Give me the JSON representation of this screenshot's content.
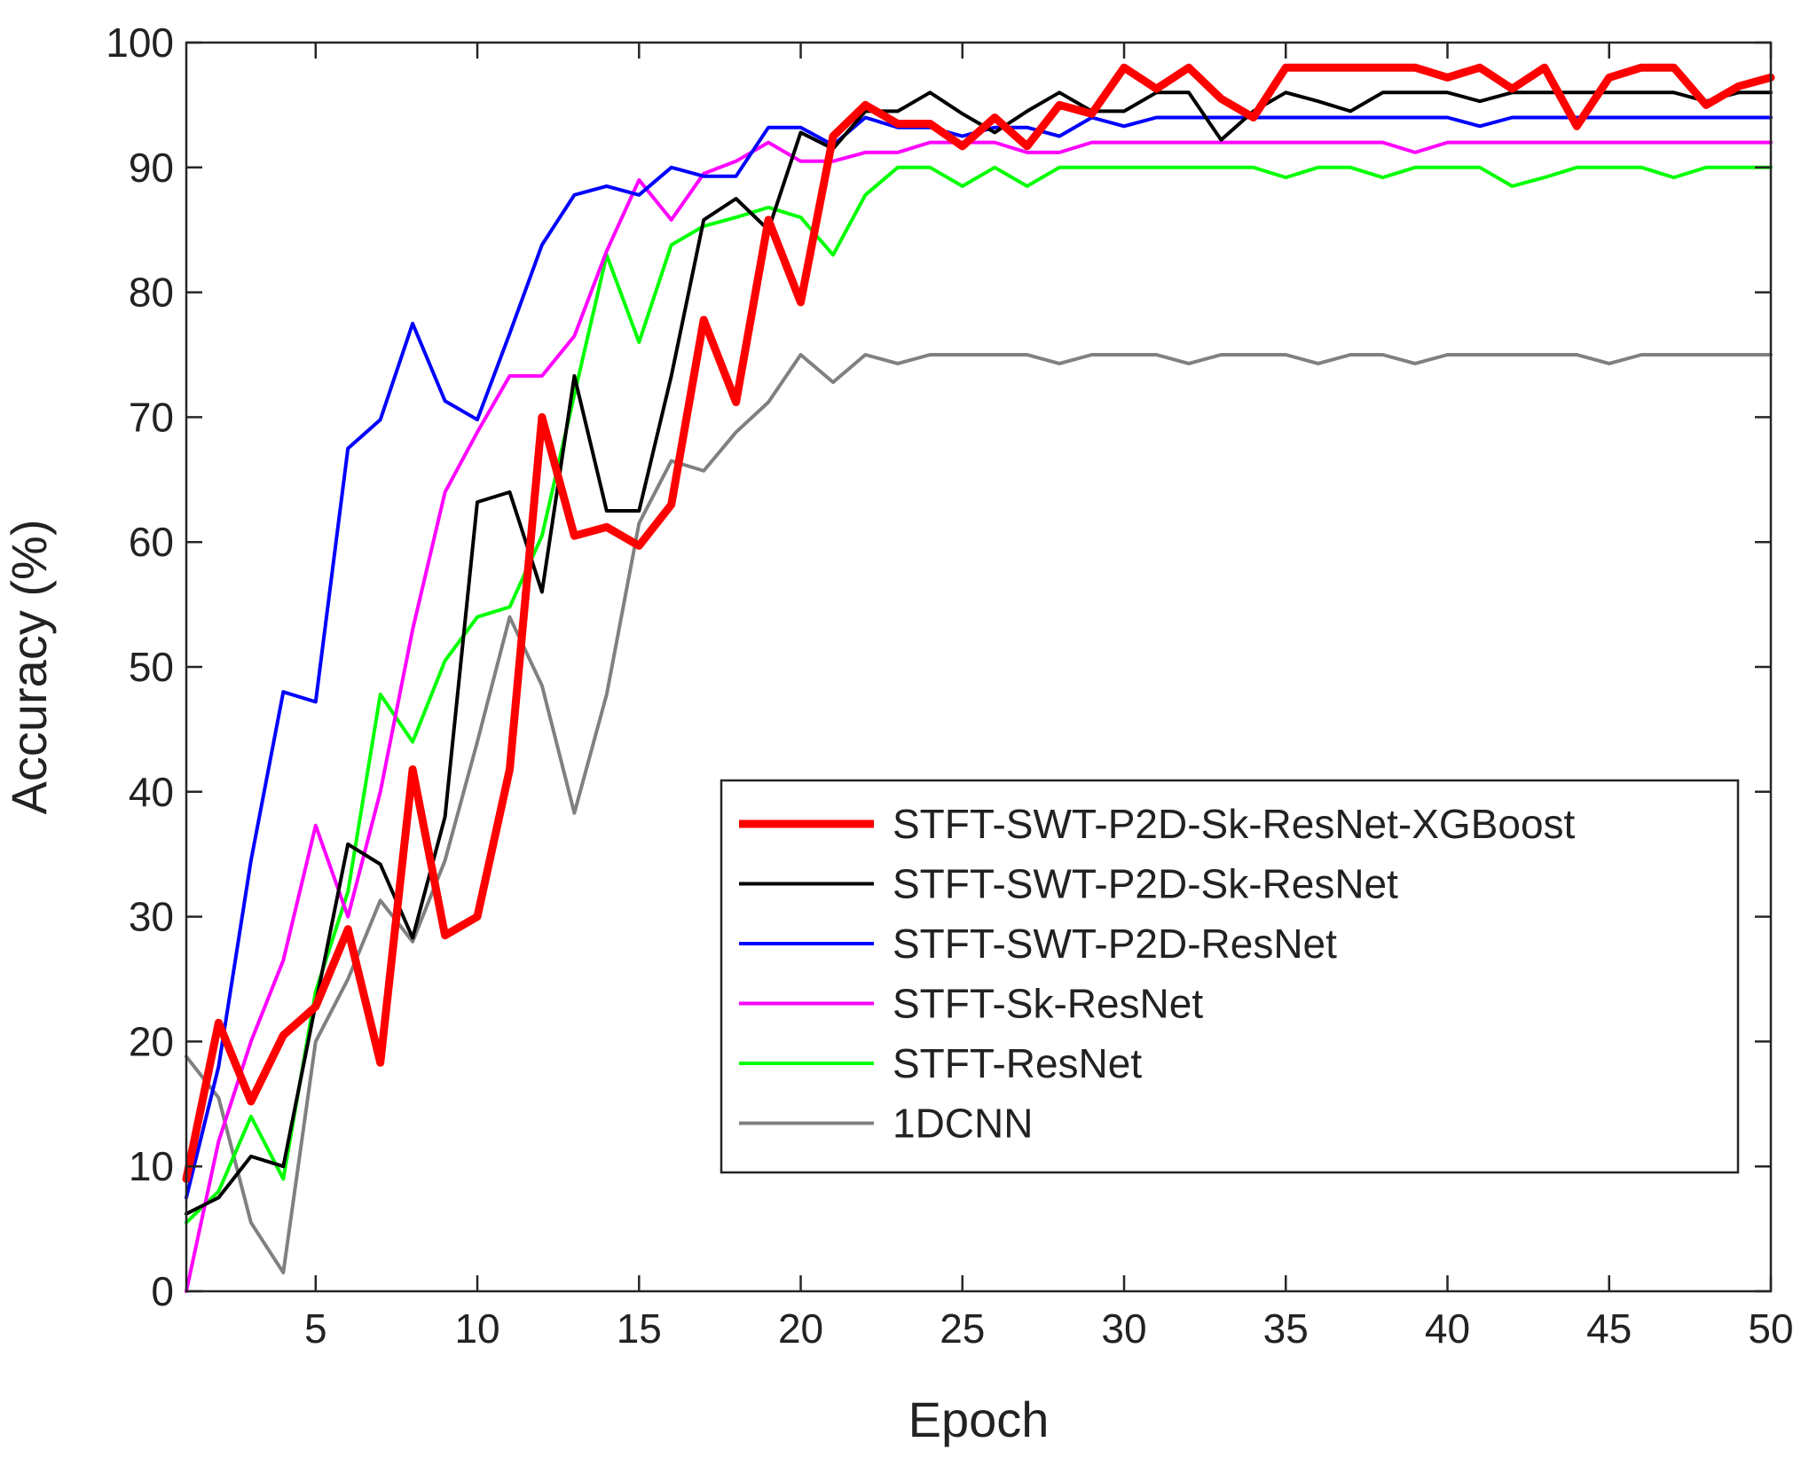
{
  "chart_data": {
    "type": "line",
    "title": "",
    "xlabel": "Epoch",
    "ylabel": "Accuracy (%)",
    "xlim": [
      1,
      50
    ],
    "ylim": [
      0,
      100
    ],
    "xticks": [
      5,
      10,
      15,
      20,
      25,
      30,
      35,
      40,
      45,
      50
    ],
    "yticks": [
      0,
      10,
      20,
      30,
      40,
      50,
      60,
      70,
      80,
      90,
      100
    ],
    "grid": false,
    "legend_position": "lower-right",
    "x": [
      1,
      2,
      3,
      4,
      5,
      6,
      7,
      8,
      9,
      10,
      11,
      12,
      13,
      14,
      15,
      16,
      17,
      18,
      19,
      20,
      21,
      22,
      23,
      24,
      25,
      26,
      27,
      28,
      29,
      30,
      31,
      32,
      33,
      34,
      35,
      36,
      37,
      38,
      39,
      40,
      41,
      42,
      43,
      44,
      45,
      46,
      47,
      48,
      49,
      50
    ],
    "series": [
      {
        "name": "STFT-SWT-P2D-Sk-ResNet-XGBoost",
        "color": "#ff0000",
        "values": [
          9,
          21.5,
          15.2,
          20.5,
          22.8,
          29,
          18.3,
          41.8,
          28.5,
          30,
          41.8,
          70,
          60.5,
          61.2,
          59.7,
          63,
          77.8,
          71.2,
          85.8,
          79.2,
          92.5,
          95,
          93.5,
          93.5,
          91.7,
          94,
          91.7,
          95,
          94.3,
          98,
          96.3,
          98,
          95.5,
          94,
          98,
          98,
          98,
          98,
          98,
          97.2,
          98,
          96.3,
          98,
          93.3,
          97.2,
          98,
          98,
          95,
          96.5,
          97.2
        ]
      },
      {
        "name": "STFT-SWT-P2D-Sk-ResNet",
        "color": "#000000",
        "values": [
          6.2,
          7.5,
          10.8,
          10,
          23,
          35.8,
          34.2,
          28.3,
          38,
          63.2,
          64,
          56,
          73.3,
          62.5,
          62.5,
          73.3,
          85.8,
          87.5,
          85,
          92.8,
          91.5,
          94.5,
          94.5,
          96,
          94.3,
          92.8,
          94.5,
          96,
          94.5,
          94.5,
          96,
          96,
          92.2,
          94.5,
          96,
          95.3,
          94.5,
          96,
          96,
          96,
          95.3,
          96,
          96,
          96,
          96,
          96,
          96,
          95.3,
          96,
          96
        ]
      },
      {
        "name": "STFT-SWT-P2D-ResNet",
        "color": "#0000ff",
        "values": [
          7.5,
          18,
          34.5,
          48,
          47.2,
          67.5,
          69.8,
          77.5,
          71.3,
          69.8,
          76.7,
          83.8,
          87.8,
          88.5,
          87.8,
          90,
          89.3,
          89.3,
          93.2,
          93.2,
          91.8,
          94,
          93.2,
          93.2,
          92.5,
          93.2,
          93.2,
          92.5,
          94,
          93.3,
          94,
          94,
          94,
          94,
          94,
          94,
          94,
          94,
          94,
          94,
          93.3,
          94,
          94,
          94,
          94,
          94,
          94,
          94,
          94,
          94
        ]
      },
      {
        "name": "STFT-Sk-ResNet",
        "color": "#ff00ff",
        "values": [
          0,
          12,
          20,
          26.5,
          37.3,
          30,
          40,
          53,
          64,
          68.8,
          73.3,
          73.3,
          76.5,
          83.3,
          89,
          85.8,
          89.5,
          90.5,
          92,
          90.5,
          90.5,
          91.2,
          91.2,
          92,
          92,
          92,
          91.2,
          91.2,
          92,
          92,
          92,
          92,
          92,
          92,
          92,
          92,
          92,
          92,
          91.2,
          92,
          92,
          92,
          92,
          92,
          92,
          92,
          92,
          92,
          92,
          92
        ]
      },
      {
        "name": "STFT-ResNet",
        "color": "#00ff00",
        "values": [
          5.5,
          8,
          14,
          9,
          24,
          32,
          47.8,
          44,
          50.5,
          54,
          54.8,
          60.5,
          71.8,
          83,
          76,
          83.8,
          85.3,
          86,
          86.8,
          86,
          83,
          87.8,
          90,
          90,
          88.5,
          90,
          88.5,
          90,
          90,
          90,
          90,
          90,
          90,
          90,
          89.2,
          90,
          90,
          89.2,
          90,
          90,
          90,
          88.5,
          89.2,
          90,
          90,
          90,
          89.2,
          90,
          90,
          90
        ]
      },
      {
        "name": "1DCNN",
        "color": "#808080",
        "values": [
          18.8,
          15.5,
          5.5,
          1.5,
          20,
          25,
          31.3,
          28,
          34.5,
          44,
          54,
          48.5,
          38.3,
          47.8,
          61.5,
          66.5,
          65.7,
          68.8,
          71.2,
          75,
          72.8,
          75,
          74.3,
          75,
          75,
          75,
          75,
          74.3,
          75,
          75,
          75,
          74.3,
          75,
          75,
          75,
          74.3,
          75,
          75,
          74.3,
          75,
          75,
          75,
          75,
          75,
          74.3,
          75,
          75,
          75,
          75,
          75
        ]
      }
    ]
  }
}
